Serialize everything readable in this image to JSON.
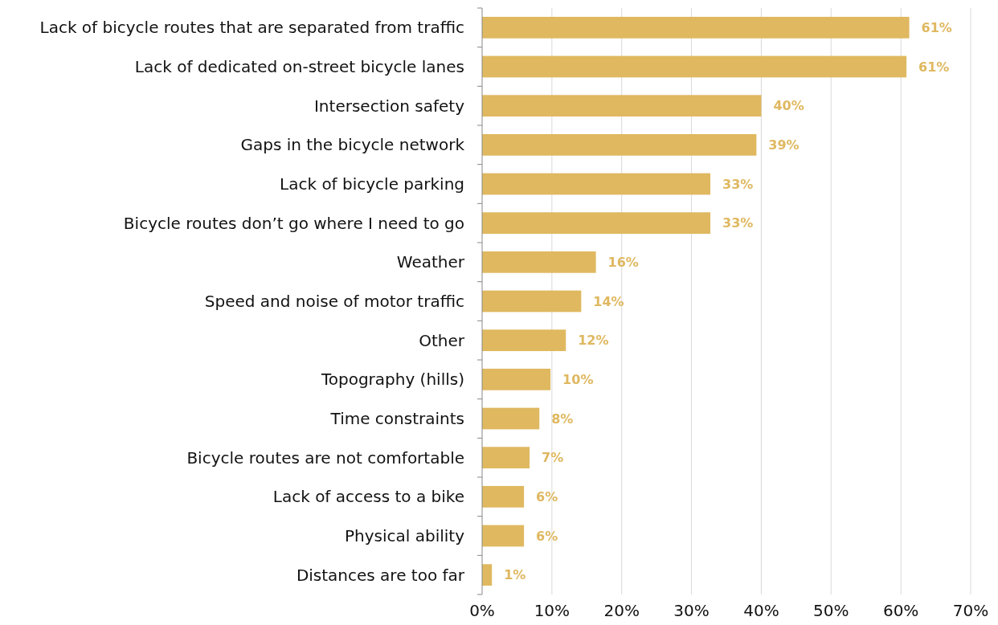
{
  "chart_data": {
    "type": "bar",
    "orientation": "horizontal",
    "categories": [
      "Lack of bicycle routes that are separated from traffic",
      "Lack of dedicated on-street bicycle lanes",
      "Intersection safety",
      "Gaps in the bicycle network",
      "Lack of bicycle parking",
      "Bicycle routes don’t go where I need to go",
      "Weather",
      "Speed and noise of motor traffic",
      "Other",
      "Topography (hills)",
      "Time constraints",
      "Bicycle routes are not comfortable",
      "Lack of access to a bike",
      "Physical ability",
      "Distances are too far"
    ],
    "values": [
      61.2,
      60.8,
      40,
      39.3,
      32.7,
      32.7,
      16.3,
      14.2,
      12,
      9.8,
      8.2,
      6.8,
      6,
      6,
      1.4
    ],
    "value_labels": [
      "61%",
      "61%",
      "40%",
      "39%",
      "33%",
      "33%",
      "16%",
      "14%",
      "12%",
      "10%",
      "8%",
      "7%",
      "6%",
      "6%",
      "1%"
    ],
    "color": "#dfb860",
    "xlim": [
      0,
      70
    ],
    "xticks": [
      {
        "value": 0,
        "label": "0%"
      },
      {
        "value": 10,
        "label": "10%"
      },
      {
        "value": 20,
        "label": "20%"
      },
      {
        "value": 30,
        "label": "30%"
      },
      {
        "value": 40,
        "label": "40%"
      },
      {
        "value": 50,
        "label": "50%"
      },
      {
        "value": 60,
        "label": "60%"
      },
      {
        "value": 70,
        "label": "70%"
      }
    ],
    "grid": "x"
  }
}
